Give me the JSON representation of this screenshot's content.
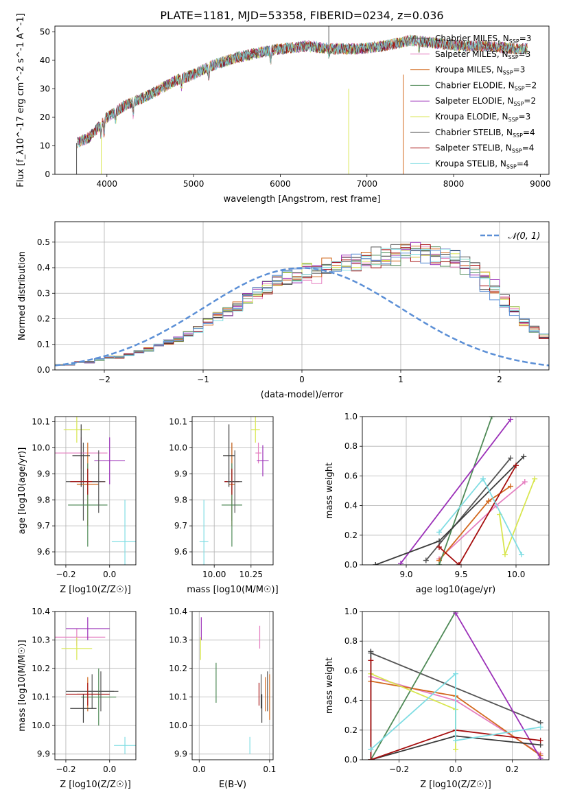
{
  "figure": {
    "title": "PLATE=1181, MJD=53358, FIBERID=0234, z=0.036"
  },
  "colors": [
    "#555555",
    "#e57fc0",
    "#d2691e",
    "#4f8a57",
    "#9b30b8",
    "#d8e650",
    "#3b3b3b",
    "#a60f0f",
    "#7fdde3"
  ],
  "colors_aux": {
    "normal": "#5b8fd6",
    "blue": "#5b8fd6"
  },
  "chart_data": [
    {
      "id": "spectrum",
      "type": "line",
      "title": "PLATE=1181, MJD=53358, FIBERID=0234, z=0.036",
      "xlabel": "wavelength [Angstrom, rest frame]",
      "ylabel": "Flux [f_λ10^-17 erg cm^-2 s^-1 A^-1]",
      "xlim": [
        3400,
        9100
      ],
      "ylim": [
        0,
        52
      ],
      "xticks": [
        4000,
        5000,
        6000,
        7000,
        8000,
        9000
      ],
      "yticks": [
        0,
        10,
        20,
        30,
        40,
        50
      ],
      "grid": false,
      "legend_position": "right",
      "series": [
        {
          "name": "Chabrier MILES, N_SSP=3",
          "color": "#555555"
        },
        {
          "name": "Salpeter MILES, N_SSP=3",
          "color": "#e57fc0"
        },
        {
          "name": "Kroupa MILES, N_SSP=3",
          "color": "#d2691e"
        },
        {
          "name": "Chabrier ELODIE, N_SSP=2",
          "color": "#4f8a57"
        },
        {
          "name": "Salpeter ELODIE, N_SSP=2",
          "color": "#9b30b8"
        },
        {
          "name": "Kroupa ELODIE, N_SSP=3",
          "color": "#d8e650"
        },
        {
          "name": "Chabrier STELIB, N_SSP=4",
          "color": "#3b3b3b"
        },
        {
          "name": "Salpeter STELIB, N_SSP=4",
          "color": "#a60f0f"
        },
        {
          "name": "Kroupa STELIB, N_SSP=4",
          "color": "#7fdde3"
        }
      ],
      "continuum": {
        "x": [
          3650,
          3800,
          4000,
          4200,
          4500,
          4800,
          5000,
          5200,
          5500,
          5800,
          6000,
          6300,
          6600,
          6900,
          7200,
          7500,
          7800,
          8100,
          8400,
          8700,
          8850
        ],
        "y": [
          11,
          13,
          20,
          24,
          28,
          33,
          35,
          38,
          41,
          43,
          44,
          45,
          44,
          44,
          45,
          47,
          46,
          45,
          45,
          44,
          44
        ]
      }
    },
    {
      "id": "residuals",
      "type": "step",
      "xlabel": "(data-model)/error",
      "ylabel": "Normed distribution",
      "xlim": [
        -2.5,
        2.5
      ],
      "ylim": [
        0,
        0.58
      ],
      "xticks": [
        -2,
        -1,
        0,
        1,
        2
      ],
      "yticks": [
        0.0,
        0.1,
        0.2,
        0.3,
        0.4,
        0.5
      ],
      "grid": true,
      "legend_position": "top-right",
      "legend_label": "𝒩(0, 1)",
      "normal_curve": {
        "mu": 0,
        "sigma": 1
      },
      "bins": {
        "start": -2.5,
        "width": 0.1,
        "base": [
          0.02,
          0.02,
          0.03,
          0.03,
          0.04,
          0.05,
          0.05,
          0.06,
          0.07,
          0.08,
          0.1,
          0.11,
          0.12,
          0.14,
          0.16,
          0.19,
          0.21,
          0.23,
          0.25,
          0.28,
          0.3,
          0.32,
          0.34,
          0.36,
          0.37,
          0.38,
          0.39,
          0.4,
          0.41,
          0.41,
          0.42,
          0.43,
          0.44,
          0.44,
          0.45,
          0.45,
          0.46,
          0.46,
          0.45,
          0.44,
          0.43,
          0.41,
          0.38,
          0.35,
          0.31,
          0.27,
          0.23,
          0.19,
          0.16,
          0.13,
          0.11,
          0.09,
          0.08,
          0.07,
          0.06,
          0.05,
          0.04,
          0.04,
          0.03,
          0.03,
          0.03,
          0.03,
          0.02,
          0.02,
          0.02,
          0.02,
          0.02,
          0.02,
          0.02,
          0.02
        ]
      }
    },
    {
      "id": "age_vs_Z",
      "type": "errorbar",
      "xlabel": "Z [log10(Z/Z☉)]",
      "ylabel": "age [log10(age/yr)]",
      "xlim": [
        -0.25,
        0.12
      ],
      "ylim": [
        9.55,
        10.12
      ],
      "xticks": [
        -0.2,
        0.0
      ],
      "yticks": [
        9.6,
        9.7,
        9.8,
        9.9,
        10.0,
        10.1
      ],
      "grid": true,
      "points": [
        {
          "x": -0.12,
          "y": 9.87,
          "xerr": 0.08,
          "yerr": 0.15,
          "c": 0
        },
        {
          "x": -0.13,
          "y": 9.98,
          "xerr": 0.12,
          "yerr": 0.06,
          "c": 1
        },
        {
          "x": -0.1,
          "y": 9.86,
          "xerr": 0.05,
          "yerr": 0.16,
          "c": 2
        },
        {
          "x": -0.1,
          "y": 9.78,
          "xerr": 0.09,
          "yerr": 0.16,
          "c": 3
        },
        {
          "x": 0.0,
          "y": 9.95,
          "xerr": 0.07,
          "yerr": 0.09,
          "c": 4
        },
        {
          "x": -0.15,
          "y": 10.07,
          "xerr": 0.06,
          "yerr": 0.05,
          "c": 5
        },
        {
          "x": -0.13,
          "y": 9.97,
          "xerr": 0.04,
          "yerr": 0.12,
          "c": 6
        },
        {
          "x": -0.1,
          "y": 9.87,
          "xerr": 0.08,
          "yerr": 0.05,
          "c": 7
        },
        {
          "x": 0.07,
          "y": 9.64,
          "xerr": 0.06,
          "yerr": 0.16,
          "c": 8
        },
        {
          "x": -0.05,
          "y": 9.87,
          "xerr": 0.03,
          "yerr": 0.12,
          "c": 0
        }
      ]
    },
    {
      "id": "age_vs_mass",
      "type": "errorbar",
      "xlabel": "mass [log10(M/M☉)]",
      "ylabel": "",
      "xlim": [
        9.85,
        10.4
      ],
      "ylim": [
        9.55,
        10.12
      ],
      "xticks": [
        10.0,
        10.25
      ],
      "yticks": [
        9.6,
        9.7,
        9.8,
        9.9,
        10.0,
        10.1
      ],
      "grid": true,
      "points": [
        {
          "x": 10.12,
          "y": 9.87,
          "xerr": 0.05,
          "yerr": 0.15,
          "c": 0
        },
        {
          "x": 10.3,
          "y": 9.98,
          "xerr": 0.02,
          "yerr": 0.04,
          "c": 1
        },
        {
          "x": 10.12,
          "y": 9.86,
          "xerr": 0.02,
          "yerr": 0.16,
          "c": 2
        },
        {
          "x": 10.12,
          "y": 9.78,
          "xerr": 0.07,
          "yerr": 0.16,
          "c": 3
        },
        {
          "x": 10.33,
          "y": 9.95,
          "xerr": 0.04,
          "yerr": 0.06,
          "c": 4
        },
        {
          "x": 10.28,
          "y": 10.07,
          "xerr": 0.03,
          "yerr": 0.05,
          "c": 5
        },
        {
          "x": 10.1,
          "y": 9.97,
          "xerr": 0.04,
          "yerr": 0.12,
          "c": 6
        },
        {
          "x": 10.12,
          "y": 9.87,
          "xerr": 0.05,
          "yerr": 0.05,
          "c": 7
        },
        {
          "x": 9.93,
          "y": 9.64,
          "xerr": 0.03,
          "yerr": 0.16,
          "c": 8
        },
        {
          "x": 10.14,
          "y": 9.87,
          "xerr": 0.05,
          "yerr": 0.12,
          "c": 0
        }
      ]
    },
    {
      "id": "weight_vs_age",
      "type": "line",
      "xlabel": "age log10(age/yr)",
      "ylabel": "mass weight",
      "xlim": [
        8.6,
        10.3
      ],
      "ylim": [
        0,
        1
      ],
      "xticks": [
        9.0,
        9.5,
        10.0
      ],
      "yticks": [
        0.0,
        0.2,
        0.4,
        0.6,
        0.8,
        1.0
      ],
      "grid": true,
      "lines": [
        {
          "c": 0,
          "pts": [
            [
              9.18,
              0.03
            ],
            [
              9.95,
              0.72
            ]
          ]
        },
        {
          "c": 1,
          "pts": [
            [
              9.3,
              0.04
            ],
            [
              9.82,
              0.4
            ],
            [
              10.08,
              0.56
            ]
          ]
        },
        {
          "c": 2,
          "pts": [
            [
              9.3,
              0.03
            ],
            [
              9.75,
              0.43
            ],
            [
              9.95,
              0.53
            ]
          ]
        },
        {
          "c": 3,
          "pts": [
            [
              9.3,
              0.0
            ],
            [
              9.78,
              1.0
            ]
          ]
        },
        {
          "c": 4,
          "pts": [
            [
              8.95,
              0.01
            ],
            [
              9.95,
              0.98
            ]
          ]
        },
        {
          "c": 5,
          "pts": [
            [
              9.85,
              0.34
            ],
            [
              9.9,
              0.07
            ],
            [
              10.17,
              0.58
            ]
          ]
        },
        {
          "c": 6,
          "pts": [
            [
              8.72,
              0.0
            ],
            [
              9.3,
              0.16
            ],
            [
              10.07,
              0.73
            ]
          ]
        },
        {
          "c": 7,
          "pts": [
            [
              9.3,
              0.12
            ],
            [
              9.48,
              0.0
            ],
            [
              10.0,
              0.67
            ]
          ]
        },
        {
          "c": 8,
          "pts": [
            [
              9.3,
              0.22
            ],
            [
              9.7,
              0.58
            ],
            [
              10.05,
              0.07
            ]
          ]
        }
      ]
    },
    {
      "id": "mass_vs_Z",
      "type": "errorbar",
      "xlabel": "Z [log10(Z/Z☉)]",
      "ylabel": "mass [log10(M/M☉)]",
      "xlim": [
        -0.25,
        0.12
      ],
      "ylim": [
        9.88,
        10.4
      ],
      "xticks": [
        -0.2,
        0.0
      ],
      "yticks": [
        9.9,
        10.0,
        10.1,
        10.2,
        10.3,
        10.4
      ],
      "grid": true,
      "points": [
        {
          "x": -0.08,
          "y": 10.12,
          "xerr": 0.12,
          "yerr": 0.06,
          "c": 0
        },
        {
          "x": -0.15,
          "y": 10.31,
          "xerr": 0.13,
          "yerr": 0.03,
          "c": 1
        },
        {
          "x": -0.1,
          "y": 10.11,
          "xerr": 0.05,
          "yerr": 0.06,
          "c": 2
        },
        {
          "x": -0.05,
          "y": 10.1,
          "xerr": 0.08,
          "yerr": 0.1,
          "c": 3
        },
        {
          "x": -0.1,
          "y": 10.34,
          "xerr": 0.1,
          "yerr": 0.04,
          "c": 4
        },
        {
          "x": -0.15,
          "y": 10.27,
          "xerr": 0.07,
          "yerr": 0.04,
          "c": 5
        },
        {
          "x": -0.12,
          "y": 10.06,
          "xerr": 0.06,
          "yerr": 0.05,
          "c": 6
        },
        {
          "x": -0.1,
          "y": 10.11,
          "xerr": 0.1,
          "yerr": 0.04,
          "c": 7
        },
        {
          "x": 0.07,
          "y": 9.93,
          "xerr": 0.05,
          "yerr": 0.03,
          "c": 8
        },
        {
          "x": -0.04,
          "y": 10.12,
          "xerr": 0.06,
          "yerr": 0.07,
          "c": 0
        }
      ]
    },
    {
      "id": "mass_vs_EBV",
      "type": "errorbar",
      "xlabel": "E(B-V)",
      "ylabel": "",
      "xlim": [
        -0.01,
        0.105
      ],
      "ylim": [
        9.88,
        10.4
      ],
      "xticks": [
        0.0,
        0.1
      ],
      "yticks": [
        9.9,
        10.0,
        10.1,
        10.2,
        10.3,
        10.4
      ],
      "grid": true,
      "points": [
        {
          "x": 0.088,
          "y": 10.12,
          "xerr": 0,
          "yerr": 0.06,
          "c": 0
        },
        {
          "x": 0.086,
          "y": 10.31,
          "xerr": 0,
          "yerr": 0.04,
          "c": 1
        },
        {
          "x": 0.094,
          "y": 10.11,
          "xerr": 0,
          "yerr": 0.06,
          "c": 2
        },
        {
          "x": 0.024,
          "y": 10.15,
          "xerr": 0,
          "yerr": 0.07,
          "c": 3
        },
        {
          "x": 0.003,
          "y": 10.34,
          "xerr": 0,
          "yerr": 0.04,
          "c": 4
        },
        {
          "x": 0.002,
          "y": 10.27,
          "xerr": 0,
          "yerr": 0.04,
          "c": 5
        },
        {
          "x": 0.089,
          "y": 10.06,
          "xerr": 0,
          "yerr": 0.05,
          "c": 6
        },
        {
          "x": 0.085,
          "y": 10.11,
          "xerr": 0,
          "yerr": 0.04,
          "c": 7
        },
        {
          "x": 0.072,
          "y": 9.93,
          "xerr": 0,
          "yerr": 0.03,
          "c": 8
        },
        {
          "x": 0.097,
          "y": 10.12,
          "xerr": 0,
          "yerr": 0.07,
          "c": 0
        },
        {
          "x": 0.1,
          "y": 10.1,
          "xerr": 0,
          "yerr": 0.08,
          "c": 2
        }
      ]
    },
    {
      "id": "weight_vs_Z",
      "type": "line",
      "xlabel": "Z [log10(Z/Z☉)]",
      "ylabel": "mass weight",
      "xlim": [
        -0.33,
        0.33
      ],
      "ylim": [
        0,
        1
      ],
      "xticks": [
        -0.2,
        0.0,
        0.2
      ],
      "yticks": [
        0.0,
        0.2,
        0.4,
        0.6,
        0.8,
        1.0
      ],
      "grid": true,
      "lines": [
        {
          "c": 0,
          "pts": [
            [
              -0.3,
              0.72
            ],
            [
              0.3,
              0.25
            ]
          ]
        },
        {
          "c": 1,
          "pts": [
            [
              -0.3,
              0.56
            ],
            [
              0.0,
              0.4
            ],
            [
              0.3,
              0.04
            ]
          ]
        },
        {
          "c": 2,
          "pts": [
            [
              -0.3,
              0.53
            ],
            [
              0.0,
              0.43
            ],
            [
              0.3,
              0.03
            ]
          ]
        },
        {
          "c": 3,
          "pts": [
            [
              -0.3,
              0.0
            ],
            [
              0.0,
              1.0
            ]
          ]
        },
        {
          "c": 4,
          "pts": [
            [
              0.0,
              0.99
            ],
            [
              0.3,
              0.01
            ]
          ]
        },
        {
          "c": 5,
          "pts": [
            [
              -0.3,
              0.58
            ],
            [
              0.0,
              0.34
            ],
            [
              0.0,
              0.07
            ]
          ]
        },
        {
          "c": 6,
          "pts": [
            [
              -0.3,
              0.73
            ],
            [
              -0.3,
              0.0
            ],
            [
              0.0,
              0.16
            ],
            [
              0.3,
              0.1
            ]
          ]
        },
        {
          "c": 7,
          "pts": [
            [
              -0.3,
              0.67
            ],
            [
              -0.3,
              0.0
            ],
            [
              0.0,
              0.2
            ],
            [
              0.3,
              0.13
            ]
          ]
        },
        {
          "c": 8,
          "pts": [
            [
              -0.3,
              0.07
            ],
            [
              0.0,
              0.58
            ],
            [
              0.0,
              0.13
            ],
            [
              0.3,
              0.22
            ]
          ]
        }
      ]
    }
  ]
}
